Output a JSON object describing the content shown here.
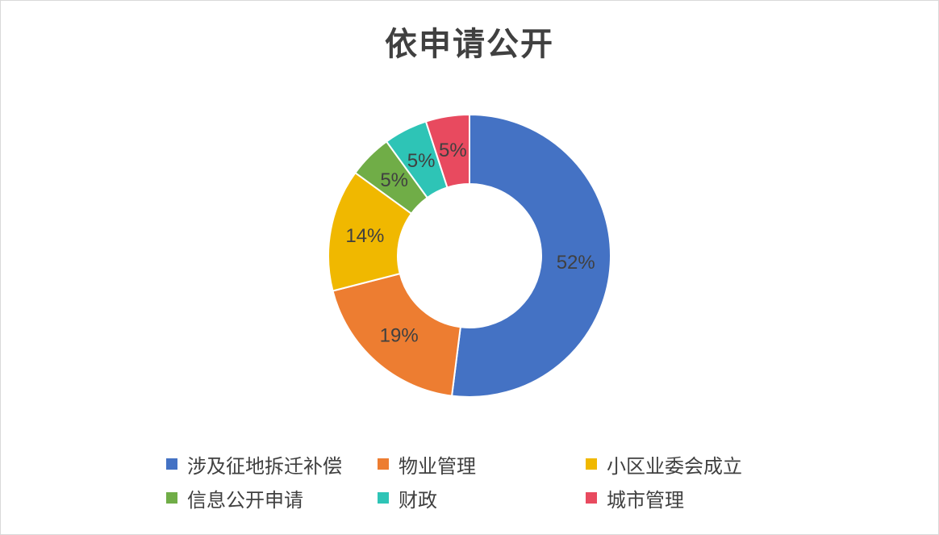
{
  "chart_data": {
    "type": "pie",
    "variant": "donut",
    "title": "依申请公开",
    "legend_position": "bottom",
    "slices": [
      {
        "label": "涉及征地拆迁补偿",
        "value": 52,
        "display": "52%",
        "color": "#4472C4"
      },
      {
        "label": "物业管理",
        "value": 19,
        "display": "19%",
        "color": "#ED7D31"
      },
      {
        "label": "小区业委会成立",
        "value": 14,
        "display": "14%",
        "color": "#F0B800"
      },
      {
        "label": "信息公开申请",
        "value": 5,
        "display": "5%",
        "color": "#70AD47"
      },
      {
        "label": "财政",
        "value": 5,
        "display": "5%",
        "color": "#2EC4B6"
      },
      {
        "label": "城市管理",
        "value": 5,
        "display": "5%",
        "color": "#E84A5F"
      }
    ]
  }
}
